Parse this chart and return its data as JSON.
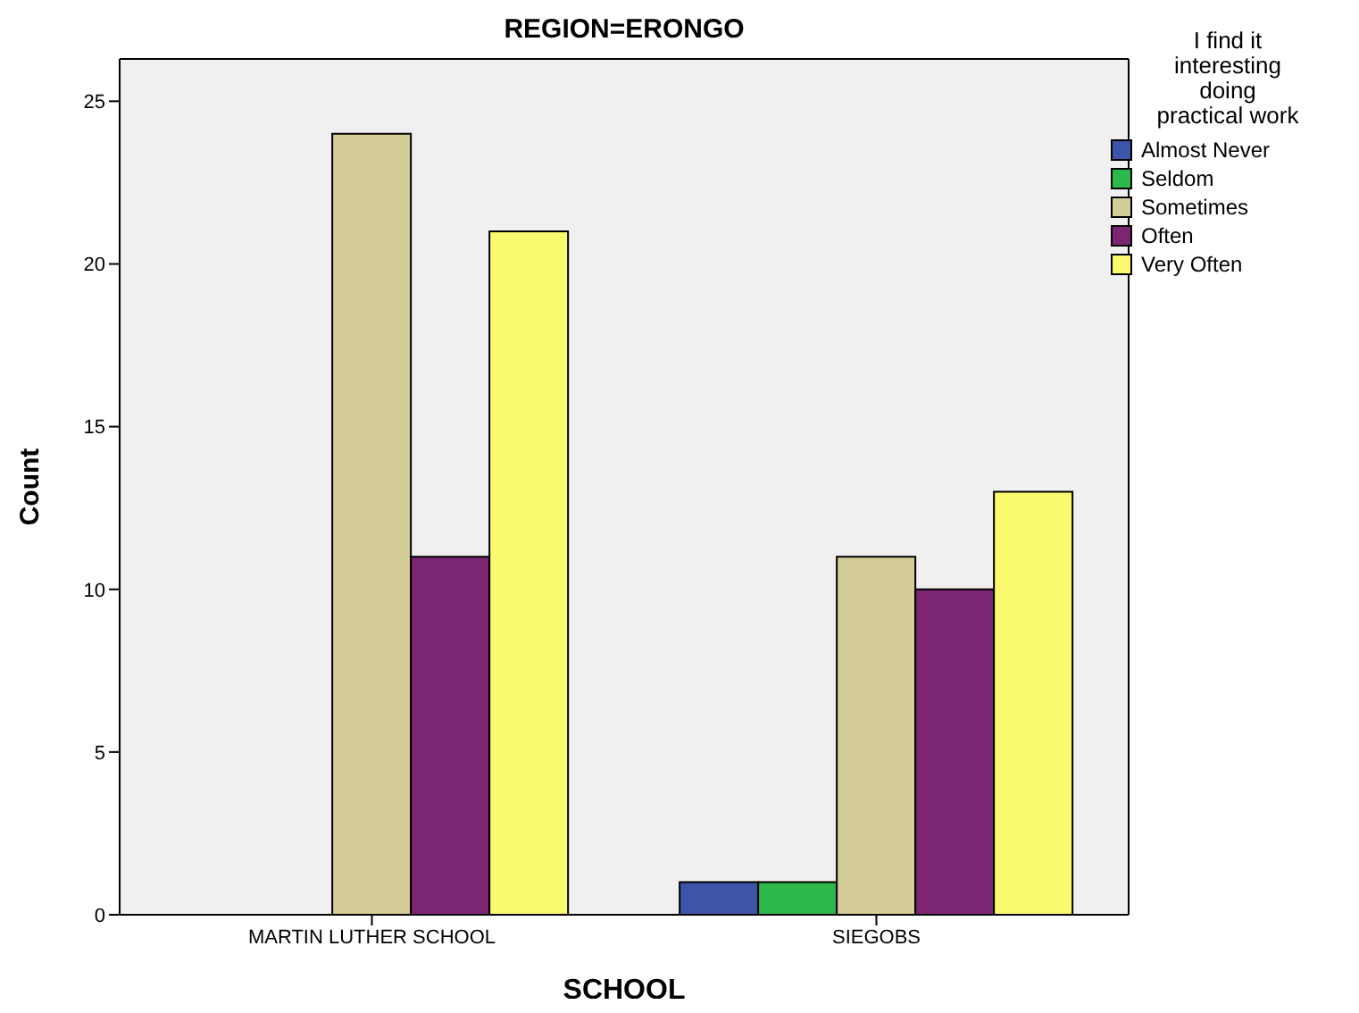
{
  "chart_data": {
    "type": "bar",
    "title": "REGION=ERONGO",
    "xlabel": "SCHOOL",
    "ylabel": "Count",
    "legend_title": "I find it interesting doing practical work",
    "categories": [
      "MARTIN LUTHER SCHOOL",
      "SIEGOBS"
    ],
    "series": [
      {
        "name": "Almost Never",
        "color": "#3d55a8",
        "values": [
          0,
          1
        ]
      },
      {
        "name": "Seldom",
        "color": "#2db84a",
        "values": [
          0,
          1
        ]
      },
      {
        "name": "Sometimes",
        "color": "#d4cd98",
        "values": [
          24,
          11
        ]
      },
      {
        "name": "Often",
        "color": "#7b2573",
        "values": [
          11,
          10
        ]
      },
      {
        "name": "Very Often",
        "color": "#fbfa6e",
        "values": [
          21,
          13
        ]
      }
    ],
    "ylim": [
      0,
      26.3
    ],
    "yticks": [
      0,
      5,
      10,
      15,
      20,
      25
    ],
    "legend": "right"
  }
}
